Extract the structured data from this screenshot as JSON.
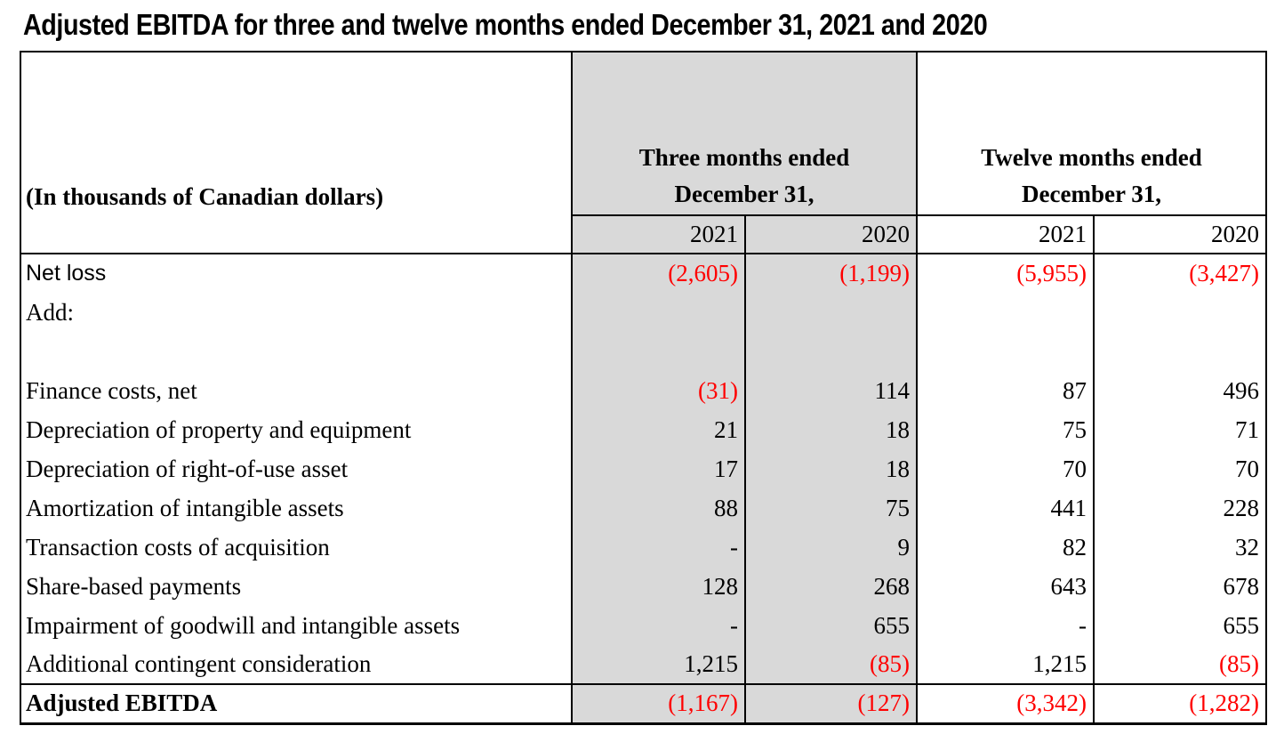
{
  "title": "Adjusted EBITDA for three and twelve months ended December 31, 2021 and 2020",
  "colors": {
    "shaded_column": "#d9d9d9",
    "negative_value": "#ff0000",
    "border": "#000000"
  },
  "table": {
    "corner_label": "(In thousands of Canadian dollars)",
    "groups": [
      {
        "line1": "Three months ended",
        "line2": "December 31,",
        "shaded": true
      },
      {
        "line1": "Twelve months ended",
        "line2": "December 31,",
        "shaded": false
      }
    ],
    "year_headers": [
      "2021",
      "2020",
      "2021",
      "2020"
    ],
    "rows": [
      {
        "label": "Net loss",
        "label_font": "sans",
        "values": [
          "(2,605)",
          "(1,199)",
          "(5,955)",
          "(3,427)"
        ]
      },
      {
        "label": "Add:",
        "values": [
          "",
          "",
          "",
          ""
        ]
      },
      {
        "label": "",
        "values": [
          "",
          "",
          "",
          ""
        ]
      },
      {
        "label": "Finance costs, net",
        "values": [
          "(31)",
          "114",
          "87",
          "496"
        ]
      },
      {
        "label": "Depreciation of property and equipment",
        "values": [
          "21",
          "18",
          "75",
          "71"
        ]
      },
      {
        "label": "Depreciation of right-of-use asset",
        "values": [
          "17",
          "18",
          "70",
          "70"
        ]
      },
      {
        "label": "Amortization of intangible assets",
        "values": [
          "88",
          "75",
          "441",
          "228"
        ]
      },
      {
        "label": "Transaction costs of acquisition",
        "values": [
          "-",
          "9",
          "82",
          "32"
        ]
      },
      {
        "label": "Share-based payments",
        "values": [
          "128",
          "268",
          "643",
          "678"
        ]
      },
      {
        "label": "Impairment of goodwill and intangible assets",
        "values": [
          "-",
          "655",
          "-",
          "655"
        ]
      },
      {
        "label": "Additional contingent consideration",
        "values": [
          "1,215",
          "(85)",
          "1,215",
          "(85)"
        ]
      }
    ],
    "total_row": {
      "label": "Adjusted EBITDA",
      "values": [
        "(1,167)",
        "(127)",
        "(3,342)",
        "(1,282)"
      ]
    }
  }
}
